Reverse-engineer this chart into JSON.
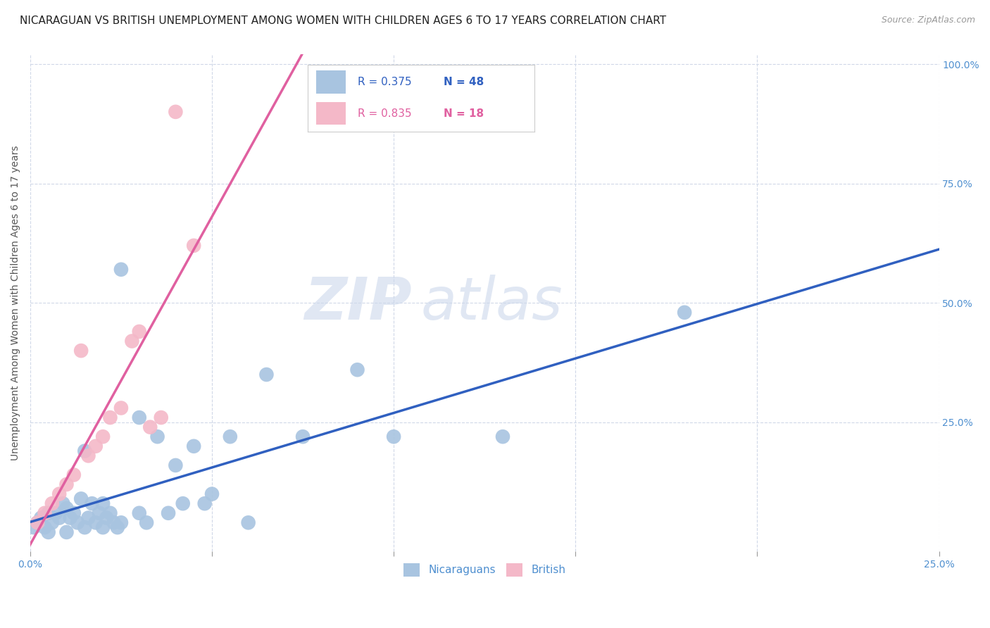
{
  "title": "NICARAGUAN VS BRITISH UNEMPLOYMENT AMONG WOMEN WITH CHILDREN AGES 6 TO 17 YEARS CORRELATION CHART",
  "source": "Source: ZipAtlas.com",
  "ylabel": "Unemployment Among Women with Children Ages 6 to 17 years",
  "xlim": [
    0.0,
    0.25
  ],
  "ylim": [
    -0.02,
    1.02
  ],
  "xticks": [
    0.0,
    0.05,
    0.1,
    0.15,
    0.2,
    0.25
  ],
  "xtick_labels": [
    "0.0%",
    "",
    "",
    "",
    "",
    "25.0%"
  ],
  "yticks": [
    0.25,
    0.5,
    0.75,
    1.0
  ],
  "ytick_labels": [
    "25.0%",
    "50.0%",
    "75.0%",
    "100.0%"
  ],
  "watermark_zip": "ZIP",
  "watermark_atlas": "atlas",
  "color_nicaraguan": "#a8c4e0",
  "color_british": "#f4b8c8",
  "line_color_nicaraguan": "#3060c0",
  "line_color_british": "#e060a0",
  "scatter_nicaraguan_x": [
    0.001,
    0.002,
    0.003,
    0.004,
    0.005,
    0.005,
    0.006,
    0.007,
    0.008,
    0.009,
    0.01,
    0.01,
    0.011,
    0.012,
    0.013,
    0.014,
    0.015,
    0.015,
    0.016,
    0.017,
    0.018,
    0.019,
    0.02,
    0.02,
    0.021,
    0.022,
    0.023,
    0.024,
    0.025,
    0.025,
    0.03,
    0.03,
    0.032,
    0.035,
    0.038,
    0.04,
    0.042,
    0.045,
    0.048,
    0.05,
    0.055,
    0.06,
    0.065,
    0.075,
    0.09,
    0.1,
    0.13,
    0.18
  ],
  "scatter_nicaraguan_y": [
    0.03,
    0.04,
    0.05,
    0.03,
    0.02,
    0.06,
    0.04,
    0.06,
    0.05,
    0.08,
    0.02,
    0.07,
    0.05,
    0.06,
    0.04,
    0.09,
    0.03,
    0.19,
    0.05,
    0.08,
    0.04,
    0.06,
    0.03,
    0.08,
    0.05,
    0.06,
    0.04,
    0.03,
    0.04,
    0.57,
    0.06,
    0.26,
    0.04,
    0.22,
    0.06,
    0.16,
    0.08,
    0.2,
    0.08,
    0.1,
    0.22,
    0.04,
    0.35,
    0.22,
    0.36,
    0.22,
    0.22,
    0.48
  ],
  "scatter_british_x": [
    0.002,
    0.004,
    0.006,
    0.008,
    0.01,
    0.012,
    0.014,
    0.016,
    0.018,
    0.02,
    0.022,
    0.025,
    0.028,
    0.03,
    0.033,
    0.036,
    0.04,
    0.045
  ],
  "scatter_british_y": [
    0.04,
    0.06,
    0.08,
    0.1,
    0.12,
    0.14,
    0.4,
    0.18,
    0.2,
    0.22,
    0.26,
    0.28,
    0.42,
    0.44,
    0.24,
    0.26,
    0.9,
    0.62
  ],
  "background_color": "#ffffff",
  "grid_color": "#d0d8e8",
  "title_fontsize": 11,
  "axis_label_fontsize": 10,
  "tick_label_fontsize": 10,
  "tick_label_color": "#5090d0",
  "legend_fontsize": 11,
  "legend_r_nic": "R = 0.375",
  "legend_n_nic": "N = 48",
  "legend_r_brit": "R = 0.835",
  "legend_n_brit": "N = 18"
}
